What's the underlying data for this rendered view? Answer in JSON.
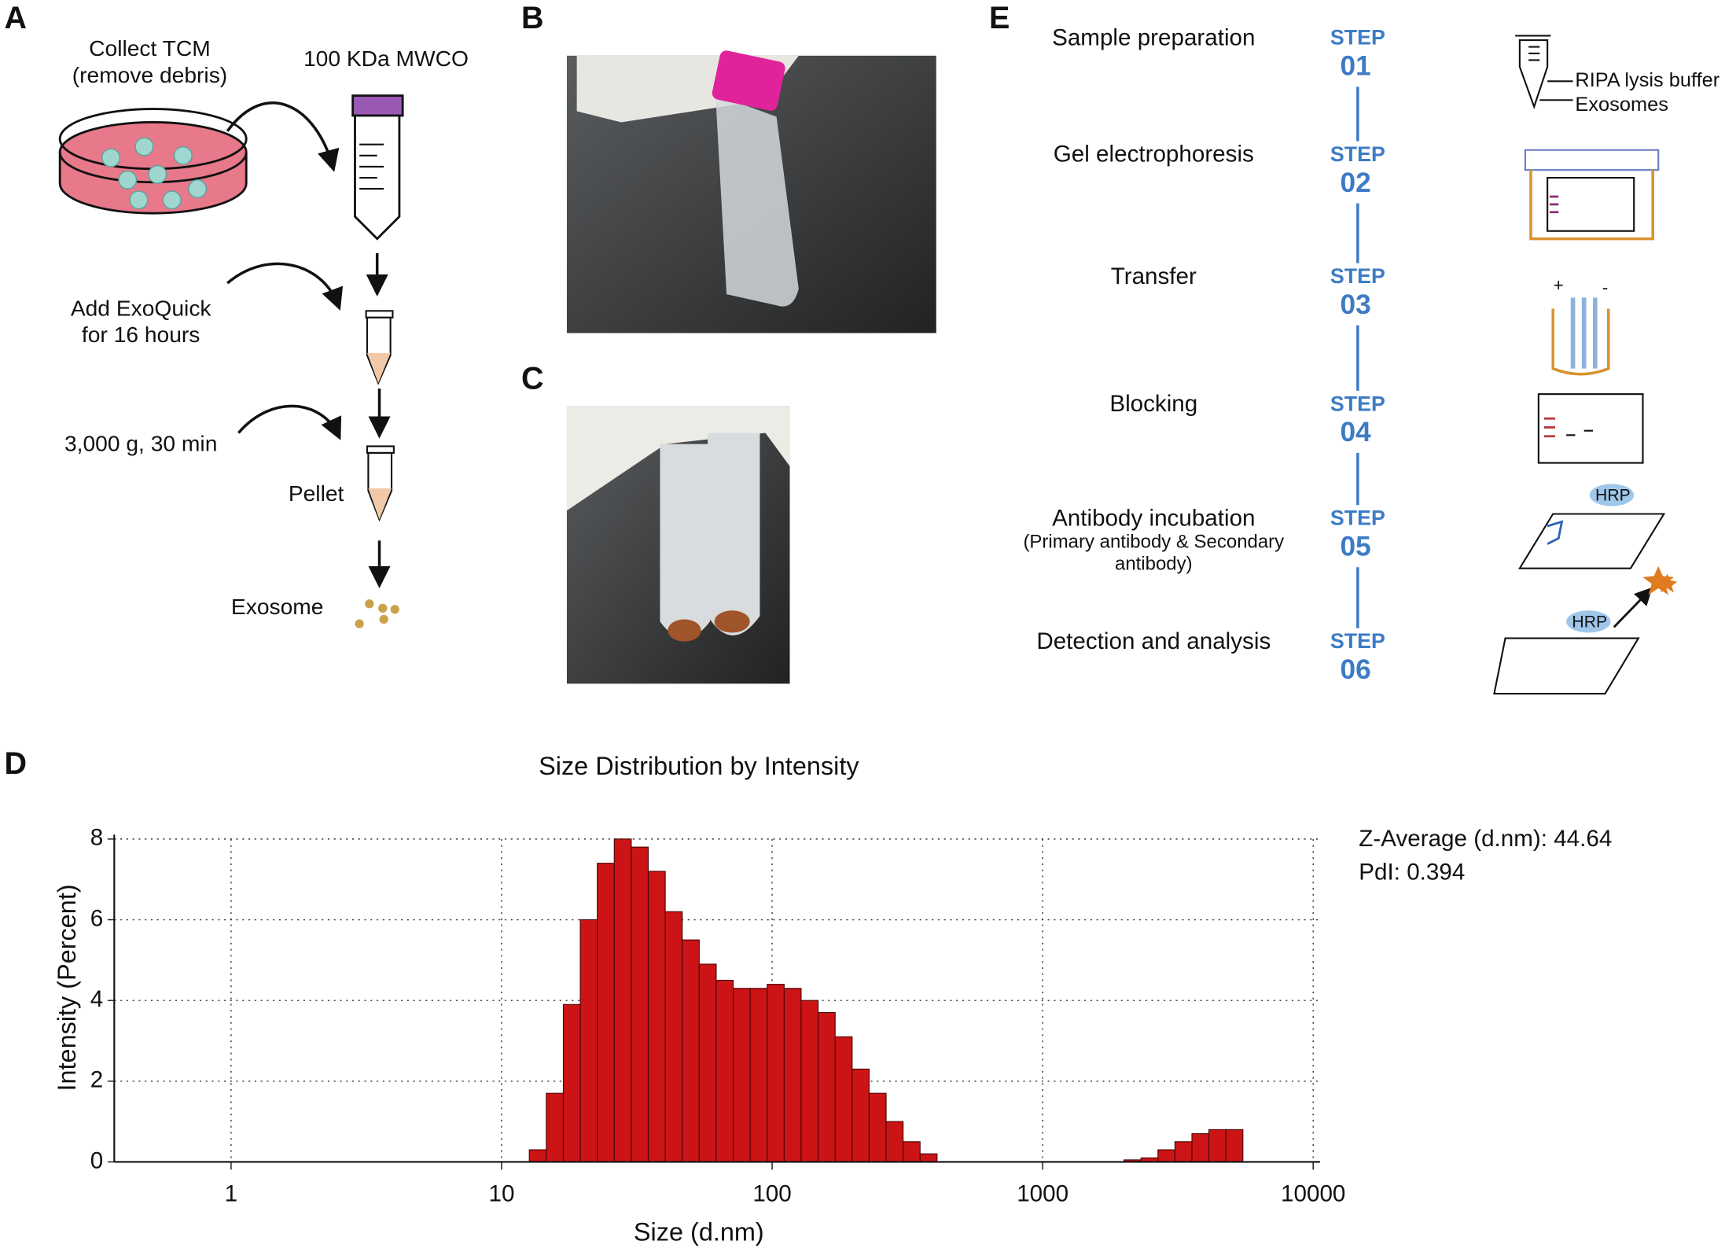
{
  "panel_a": {
    "label": "A",
    "collect": "Collect TCM",
    "remove": "(remove debris)",
    "mwco": "100 KDa MWCO",
    "add": "Add ExoQuick",
    "hours": "for 16 hours",
    "spin": "3,000 g, 30 min",
    "pellet": "Pellet",
    "exosome": "Exosome"
  },
  "panel_b": {
    "label": "B"
  },
  "panel_c": {
    "label": "C"
  },
  "panel_d": {
    "label": "D"
  },
  "panel_e": {
    "label": "E",
    "steps": [
      {
        "name": "Sample preparation",
        "step": "STEP",
        "number": "01"
      },
      {
        "name": "Gel electrophoresis",
        "step": "STEP",
        "number": "02"
      },
      {
        "name": "Transfer",
        "step": "STEP",
        "number": "03"
      },
      {
        "name": "Blocking",
        "step": "STEP",
        "number": "04"
      },
      {
        "name": "Antibody incubation",
        "note": [
          "(Primary antibody & Secondary",
          "antibody)"
        ],
        "step": "STEP",
        "number": "05"
      },
      {
        "name": "Detection and analysis",
        "step": "STEP",
        "number": "06"
      }
    ],
    "icon_labels": [
      "RIPA lysis buffer",
      "Exosomes"
    ],
    "signs": [
      "+",
      "-"
    ],
    "hrp": "HRP"
  },
  "chart_data": {
    "type": "histogram",
    "title": "Size Distribution by Intensity",
    "xlabel": "Size (d.nm)",
    "ylabel": "Intensity (Percent)",
    "bins": [
      12.66,
      14.63,
      16.91,
      19.54,
      22.58,
      26.09,
      30.15,
      34.84,
      40.26,
      46.53,
      53.77,
      62.13,
      71.8,
      82.97,
      95.88,
      110.8,
      128,
      147.9,
      171,
      197.6,
      228.3,
      263.8,
      304.9,
      352.3,
      407.1,
      470.5,
      543.7,
      628.3,
      726,
      839,
      969.5,
      1120,
      1295,
      1496,
      1729,
      1998,
      2309,
      2668,
      3083,
      3563,
      4117,
      4757,
      5497
    ],
    "counts": [
      0.3,
      1.7,
      3.9,
      6.0,
      7.4,
      8.0,
      7.8,
      7.2,
      6.2,
      5.5,
      4.9,
      4.5,
      4.3,
      4.3,
      4.4,
      4.3,
      4.0,
      3.7,
      3.1,
      2.3,
      1.7,
      1.0,
      0.5,
      0.2,
      0,
      0,
      0,
      0,
      0,
      0,
      0,
      0,
      0,
      0,
      0,
      0.05,
      0.1,
      0.3,
      0.5,
      0.7,
      0.8,
      0.8
    ],
    "color": "#cc1417",
    "xscale": "log",
    "xlim": [
      0.37,
      10600
    ],
    "ylim": [
      0,
      8
    ],
    "xticks": [
      1,
      10,
      100,
      1000,
      10000
    ],
    "yticks": [
      0,
      2,
      4,
      6,
      8
    ],
    "grid": true,
    "annotations": [
      "Z-Average (d.nm): 44.64",
      "PdI: 0.394"
    ]
  }
}
